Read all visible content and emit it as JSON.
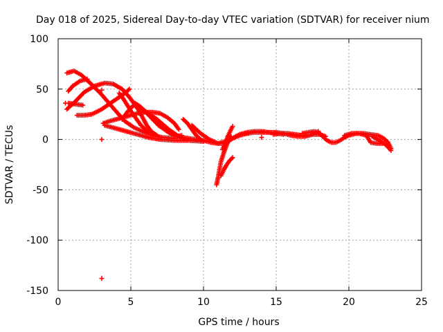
{
  "chart_data": {
    "type": "scatter",
    "title": "Day 018 of 2025, Sidereal Day-to-day VTEC variation (SDTVAR) for receiver nium",
    "xlabel": "GPS time / hours",
    "ylabel": "SDTVAR / TECUs",
    "xlim": [
      0,
      25
    ],
    "ylim": [
      -150,
      100
    ],
    "xticks": [
      "0",
      "5",
      "10",
      "15",
      "20",
      "25"
    ],
    "yticks": [
      "100",
      "50",
      "0",
      "-50",
      "-100",
      "-150"
    ],
    "grid": true,
    "marker": "plus",
    "color": "#ff0000",
    "segments": [
      {
        "name": "arc-1",
        "points": [
          [
            0.6,
            66
          ],
          [
            1.1,
            68
          ],
          [
            1.6,
            64
          ],
          [
            2.2,
            56
          ],
          [
            2.9,
            46
          ],
          [
            3.5,
            36
          ],
          [
            4.1,
            26
          ],
          [
            4.6,
            18
          ],
          [
            5.2,
            12
          ],
          [
            5.8,
            8
          ],
          [
            6.5,
            4
          ],
          [
            7.2,
            2
          ],
          [
            8.0,
            1
          ]
        ]
      },
      {
        "name": "arc-2",
        "points": [
          [
            0.6,
            30
          ],
          [
            1.2,
            38
          ],
          [
            1.8,
            47
          ],
          [
            2.5,
            53
          ],
          [
            3.2,
            56
          ],
          [
            3.8,
            55
          ],
          [
            4.4,
            50
          ],
          [
            4.9,
            42
          ],
          [
            5.2,
            36
          ],
          [
            5.5,
            30
          ],
          [
            5.8,
            22
          ],
          [
            6.1,
            14
          ],
          [
            6.4,
            8
          ],
          [
            6.8,
            4
          ]
        ]
      },
      {
        "name": "arc-3",
        "points": [
          [
            0.7,
            48
          ],
          [
            1.0,
            53
          ],
          [
            1.5,
            58
          ],
          [
            2.0,
            60
          ]
        ]
      },
      {
        "name": "arc-4",
        "points": [
          [
            0.7,
            36
          ],
          [
            1.2,
            35
          ],
          [
            1.7,
            34
          ]
        ]
      },
      {
        "name": "arc-5",
        "points": [
          [
            1.3,
            24
          ],
          [
            1.8,
            24
          ],
          [
            2.3,
            25
          ],
          [
            2.6,
            27
          ],
          [
            3.0,
            30
          ],
          [
            3.4,
            34
          ],
          [
            3.8,
            38
          ],
          [
            4.2,
            42
          ],
          [
            4.6,
            46
          ],
          [
            4.9,
            50
          ]
        ]
      },
      {
        "name": "arc-6",
        "points": [
          [
            3.1,
            16
          ],
          [
            3.5,
            18
          ],
          [
            4.0,
            20
          ],
          [
            4.5,
            22
          ],
          [
            5.0,
            24
          ],
          [
            5.5,
            26
          ],
          [
            6.0,
            27
          ],
          [
            6.5,
            27
          ],
          [
            7.0,
            26
          ],
          [
            7.5,
            22
          ],
          [
            8.0,
            16
          ],
          [
            8.3,
            10
          ]
        ]
      },
      {
        "name": "arc-7",
        "points": [
          [
            3.2,
            14
          ],
          [
            3.7,
            12
          ],
          [
            4.2,
            10
          ],
          [
            4.7,
            8
          ],
          [
            5.2,
            6
          ],
          [
            5.7,
            4
          ],
          [
            6.2,
            2
          ],
          [
            7.0,
            0
          ],
          [
            8.0,
            -1
          ],
          [
            9.0,
            -1
          ],
          [
            10.0,
            -2
          ]
        ]
      },
      {
        "name": "arc-8",
        "points": [
          [
            4.2,
            46
          ],
          [
            4.5,
            40
          ],
          [
            4.8,
            33
          ],
          [
            5.1,
            26
          ],
          [
            5.4,
            20
          ],
          [
            5.7,
            14
          ],
          [
            6.0,
            10
          ],
          [
            6.3,
            6
          ]
        ]
      },
      {
        "name": "arc-9",
        "points": [
          [
            4.4,
            20
          ],
          [
            4.8,
            28
          ],
          [
            5.2,
            34
          ],
          [
            5.6,
            32
          ],
          [
            6.0,
            28
          ],
          [
            6.4,
            24
          ],
          [
            6.8,
            20
          ],
          [
            7.2,
            15
          ],
          [
            7.6,
            10
          ],
          [
            8.0,
            6
          ],
          [
            8.4,
            2
          ],
          [
            8.8,
            0
          ]
        ]
      },
      {
        "name": "arc-10",
        "points": [
          [
            5.3,
            36
          ],
          [
            5.7,
            32
          ],
          [
            6.1,
            26
          ],
          [
            6.5,
            20
          ],
          [
            6.9,
            14
          ],
          [
            7.3,
            10
          ],
          [
            7.7,
            6
          ],
          [
            8.1,
            3
          ],
          [
            8.5,
            4
          ]
        ]
      },
      {
        "name": "arc-11",
        "points": [
          [
            6.9,
            16
          ],
          [
            7.3,
            12
          ],
          [
            7.7,
            8
          ],
          [
            8.1,
            4
          ],
          [
            8.5,
            2
          ],
          [
            9.0,
            1
          ],
          [
            9.5,
            0
          ],
          [
            10.0,
            -1
          ],
          [
            10.5,
            -3
          ],
          [
            11.0,
            -4
          ],
          [
            11.5,
            -2
          ],
          [
            12.0,
            1
          ],
          [
            12.5,
            4
          ],
          [
            13.0,
            6
          ],
          [
            13.5,
            7
          ],
          [
            14.0,
            7
          ],
          [
            14.5,
            7
          ],
          [
            15.0,
            6
          ],
          [
            15.5,
            5
          ]
        ]
      },
      {
        "name": "arc-12",
        "points": [
          [
            8.6,
            20
          ],
          [
            8.9,
            16
          ],
          [
            9.2,
            10
          ],
          [
            9.5,
            4
          ],
          [
            9.8,
            0
          ]
        ]
      },
      {
        "name": "arc-13",
        "points": [
          [
            9.2,
            14
          ],
          [
            9.5,
            10
          ],
          [
            9.8,
            6
          ],
          [
            10.1,
            3
          ],
          [
            10.4,
            0
          ],
          [
            10.7,
            -2
          ],
          [
            11.0,
            -4
          ],
          [
            11.3,
            -4
          ],
          [
            11.6,
            -2
          ],
          [
            11.9,
            0
          ],
          [
            12.2,
            3
          ],
          [
            12.5,
            5
          ],
          [
            12.8,
            6
          ],
          [
            13.1,
            6
          ]
        ]
      },
      {
        "name": "arc-14",
        "points": [
          [
            10.9,
            -45
          ],
          [
            11.0,
            -38
          ],
          [
            11.1,
            -30
          ],
          [
            11.2,
            -22
          ],
          [
            11.4,
            -13
          ],
          [
            11.6,
            -5
          ],
          [
            11.8,
            0
          ],
          [
            11.9,
            3
          ]
        ]
      },
      {
        "name": "arc-15",
        "points": [
          [
            11.2,
            -36
          ],
          [
            11.4,
            -30
          ],
          [
            11.6,
            -25
          ],
          [
            11.8,
            -21
          ],
          [
            12.0,
            -18
          ]
        ]
      },
      {
        "name": "arc-16",
        "points": [
          [
            11.3,
            -10
          ],
          [
            11.5,
            -4
          ],
          [
            11.7,
            4
          ],
          [
            11.9,
            10
          ],
          [
            12.0,
            13
          ]
        ]
      },
      {
        "name": "arc-17",
        "points": [
          [
            12.5,
            5
          ],
          [
            13.0,
            7
          ],
          [
            13.5,
            8
          ],
          [
            14.0,
            8
          ],
          [
            14.5,
            7
          ],
          [
            15.0,
            7
          ],
          [
            15.5,
            6
          ],
          [
            16.0,
            4
          ],
          [
            16.5,
            3
          ],
          [
            17.0,
            3
          ],
          [
            17.5,
            5
          ],
          [
            18.0,
            5
          ],
          [
            18.4,
            3
          ]
        ]
      },
      {
        "name": "arc-18",
        "points": [
          [
            14.8,
            5
          ],
          [
            15.3,
            6
          ],
          [
            15.8,
            6
          ],
          [
            16.3,
            5
          ],
          [
            16.8,
            4
          ],
          [
            17.3,
            4
          ],
          [
            17.6,
            6
          ],
          [
            17.9,
            8
          ]
        ]
      },
      {
        "name": "arc-19",
        "points": [
          [
            16.8,
            6
          ],
          [
            17.2,
            7
          ],
          [
            17.6,
            8
          ],
          [
            17.9,
            7
          ],
          [
            18.2,
            3
          ],
          [
            18.5,
            -1
          ],
          [
            18.8,
            -3
          ],
          [
            19.1,
            -3
          ],
          [
            19.4,
            -1
          ],
          [
            19.7,
            2
          ],
          [
            20.0,
            4
          ],
          [
            20.5,
            6
          ],
          [
            21.0,
            6
          ],
          [
            21.5,
            5
          ],
          [
            22.0,
            4
          ],
          [
            22.4,
            1
          ],
          [
            22.7,
            -3
          ],
          [
            22.9,
            -9
          ]
        ]
      },
      {
        "name": "arc-20",
        "points": [
          [
            19.7,
            4
          ],
          [
            20.2,
            6
          ],
          [
            20.7,
            6
          ],
          [
            21.2,
            4
          ],
          [
            21.5,
            -3
          ],
          [
            21.9,
            -4
          ],
          [
            22.3,
            -4
          ]
        ]
      },
      {
        "name": "arc-21",
        "points": [
          [
            21.6,
            3
          ],
          [
            22.0,
            0
          ],
          [
            22.3,
            -3
          ],
          [
            22.6,
            -6
          ],
          [
            22.9,
            -11
          ]
        ]
      },
      {
        "name": "outliers",
        "points": [
          [
            3.0,
            -138
          ],
          [
            3.0,
            0
          ],
          [
            3.0,
            49
          ],
          [
            0.5,
            36
          ],
          [
            14.0,
            2
          ]
        ]
      }
    ]
  }
}
